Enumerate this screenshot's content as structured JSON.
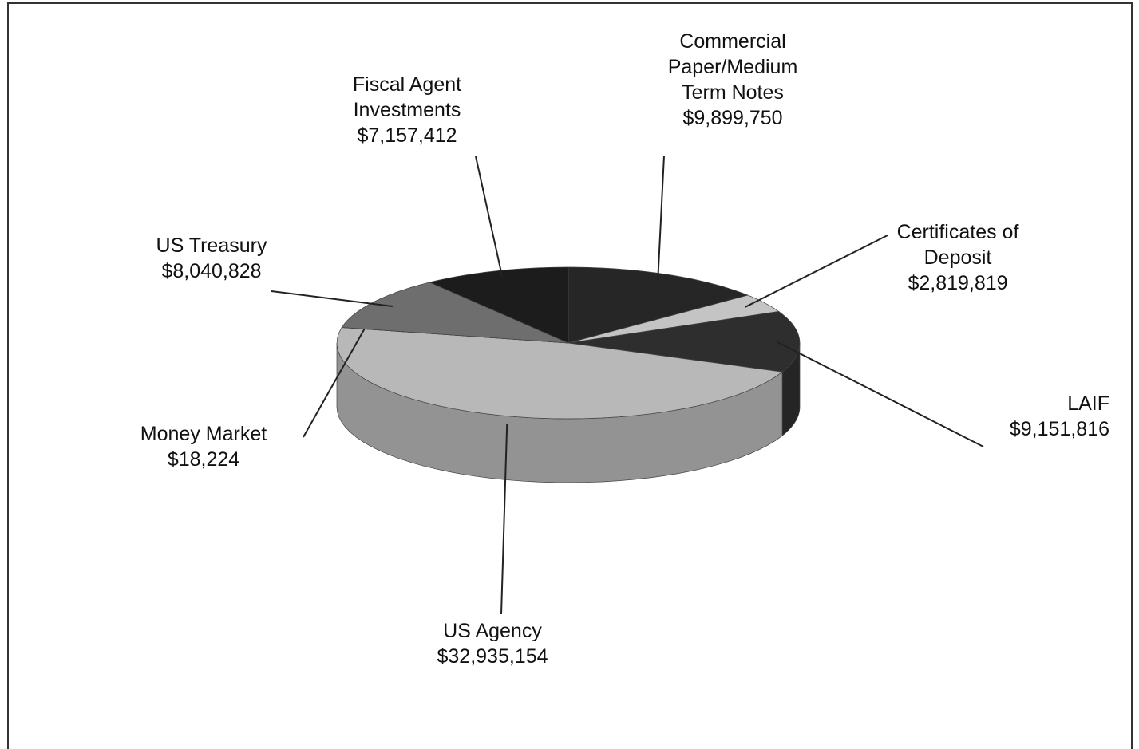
{
  "chart_data": {
    "type": "pie",
    "categories": [
      "Commercial Paper/Medium Term Notes",
      "Certificates of Deposit",
      "LAIF",
      "US Agency",
      "Money Market",
      "US Treasury",
      "Fiscal Agent Investments"
    ],
    "values": [
      9899750,
      2819819,
      9151816,
      32935154,
      18224,
      8040828,
      7157412
    ],
    "value_labels": [
      "$9,899,750",
      "$2,819,819",
      "$9,151,816",
      "$32,935,154",
      "$18,224",
      "$8,040,828",
      "$7,157,412"
    ],
    "colors": [
      "#262626",
      "#c4c4c4",
      "#2e2e2e",
      "#b8b8b8",
      "#9a9a9a",
      "#6e6e6e",
      "#1c1c1c"
    ]
  }
}
